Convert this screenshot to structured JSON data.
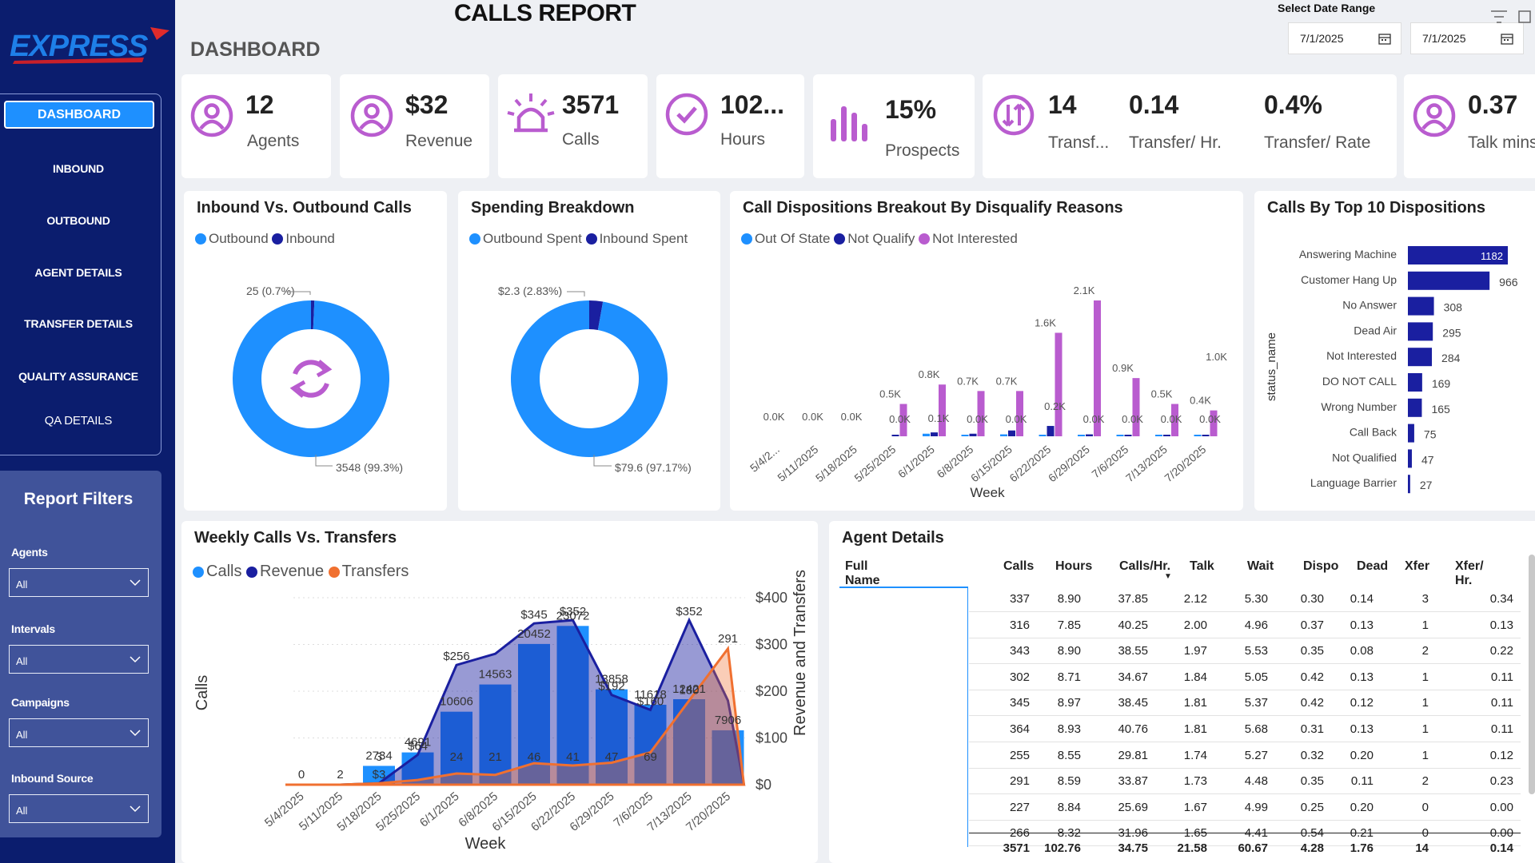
{
  "colors": {
    "sidebar": "#0b1d6e",
    "accent": "#1e90ff",
    "inbound": "#1a1fa0",
    "purple": "#b95ccf",
    "orange": "#f07030"
  },
  "header": {
    "title": "CALLS REPORT",
    "subtitle": "DASHBOARD",
    "date_range_label": "Select Date Range",
    "date_from": "7/1/2025",
    "date_to": "7/1/2025"
  },
  "sidebar": {
    "logo_text": "EXPRESS",
    "nav": [
      "DASHBOARD",
      "INBOUND",
      "OUTBOUND",
      "AGENT DETAILS",
      "TRANSFER DETAILS",
      "QUALITY ASSURANCE",
      "QA DETAILS"
    ],
    "filters_title": "Report Filters",
    "filters": [
      {
        "label": "Agents",
        "value": "All"
      },
      {
        "label": "Intervals",
        "value": "All"
      },
      {
        "label": "Campaigns",
        "value": "All"
      },
      {
        "label": "Inbound Source",
        "value": "All"
      }
    ]
  },
  "kpis": {
    "agents": {
      "value": "12",
      "label": "Agents"
    },
    "revenue": {
      "value": "$32",
      "label": "Revenue"
    },
    "calls": {
      "value": "3571",
      "label": "Calls"
    },
    "hours": {
      "value": "102...",
      "label": "Hours"
    },
    "prospects": {
      "value": "15%",
      "label": "Prospects"
    },
    "transfers": {
      "value": "14",
      "label": "Transf..."
    },
    "transfer_hr": {
      "value": "0.14",
      "label": "Transfer/ Hr."
    },
    "transfer_rate": {
      "value": "0.4%",
      "label": "Transfer/ Rate"
    },
    "talk": {
      "value": "0.37",
      "label": "Talk mins"
    }
  },
  "inbound_outbound": {
    "title": "Inbound Vs. Outbound Calls",
    "legend": [
      "Outbound",
      "Inbound"
    ],
    "label_small": "25 (0.7%)",
    "label_large": "3548 (99.3%)"
  },
  "spending": {
    "title": "Spending Breakdown",
    "legend": [
      "Outbound Spent",
      "Inbound Spent"
    ],
    "label_small": "$2.3 (2.83%)",
    "label_large": "$79.6 (97.17%)"
  },
  "dispositions_breakout": {
    "title": "Call Dispositions Breakout By Disqualify Reasons",
    "legend": [
      "Out Of State",
      "Not Qualify",
      "Not Interested"
    ],
    "xlabel": "Week"
  },
  "top10": {
    "title": "Calls By Top 10 Dispositions",
    "ylabel": "status_name"
  },
  "weekly": {
    "title": "Weekly Calls Vs. Transfers",
    "legend": [
      "Calls",
      "Revenue",
      "Transfers"
    ],
    "ylabel_left": "Calls",
    "ylabel_right": "Revenue and Transfers",
    "xlabel": "Week",
    "right_ticks": [
      "$400",
      "$300",
      "$200",
      "$100",
      "$0"
    ]
  },
  "agent_details": {
    "title": "Agent Details",
    "columns": [
      "Full Name",
      "Calls",
      "Hours",
      "Calls/Hr.",
      "Talk",
      "Wait",
      "Dispo",
      "Dead",
      "Xfer",
      "Xfer/ Hr."
    ],
    "rows": [
      [
        "",
        "337",
        "8.90",
        "37.85",
        "2.12",
        "5.30",
        "0.30",
        "0.14",
        "3",
        "0.34"
      ],
      [
        "",
        "316",
        "7.85",
        "40.25",
        "2.00",
        "4.96",
        "0.37",
        "0.13",
        "1",
        "0.13"
      ],
      [
        "",
        "343",
        "8.90",
        "38.55",
        "1.97",
        "5.53",
        "0.35",
        "0.08",
        "2",
        "0.22"
      ],
      [
        "",
        "302",
        "8.71",
        "34.67",
        "1.84",
        "5.05",
        "0.42",
        "0.13",
        "1",
        "0.11"
      ],
      [
        "",
        "345",
        "8.97",
        "38.45",
        "1.81",
        "5.37",
        "0.42",
        "0.12",
        "1",
        "0.11"
      ],
      [
        "",
        "364",
        "8.93",
        "40.76",
        "1.81",
        "5.68",
        "0.31",
        "0.13",
        "1",
        "0.11"
      ],
      [
        "",
        "255",
        "8.55",
        "29.81",
        "1.74",
        "5.27",
        "0.32",
        "0.20",
        "1",
        "0.12"
      ],
      [
        "",
        "291",
        "8.59",
        "33.87",
        "1.73",
        "4.48",
        "0.35",
        "0.11",
        "2",
        "0.23"
      ],
      [
        "",
        "227",
        "8.84",
        "25.69",
        "1.67",
        "4.99",
        "0.25",
        "0.20",
        "0",
        "0.00"
      ],
      [
        "",
        "266",
        "8.32",
        "31.96",
        "1.65",
        "4.41",
        "0.54",
        "0.21",
        "0",
        "0.00"
      ]
    ],
    "totals": [
      "",
      "3571",
      "102.76",
      "34.75",
      "21.58",
      "60.67",
      "4.28",
      "1.76",
      "14",
      "0.14"
    ]
  },
  "chart_data": [
    {
      "type": "pie",
      "title": "Inbound Vs. Outbound Calls",
      "labels": [
        "Outbound",
        "Inbound"
      ],
      "values": [
        3548,
        25
      ],
      "percent": [
        99.3,
        0.7
      ]
    },
    {
      "type": "pie",
      "title": "Spending Breakdown",
      "labels": [
        "Outbound Spent",
        "Inbound Spent"
      ],
      "values": [
        79.6,
        2.3
      ],
      "percent": [
        97.17,
        2.83
      ]
    },
    {
      "type": "bar",
      "title": "Call Dispositions Breakout By Disqualify Reasons",
      "xlabel": "Week",
      "categories": [
        "5/4/2...",
        "5/11/2025",
        "5/18/2025",
        "5/25/2025",
        "6/1/2025",
        "6/8/2025",
        "6/15/2025",
        "6/22/2025",
        "6/29/2025",
        "7/6/2025",
        "7/13/2025",
        "7/20/2025"
      ],
      "series": [
        {
          "name": "Out Of State",
          "values": [
            0,
            0,
            0,
            0,
            40,
            20,
            30,
            20,
            10,
            10,
            10,
            10
          ]
        },
        {
          "name": "Not Qualify",
          "values": [
            0,
            0,
            0,
            20,
            60,
            40,
            90,
            160,
            30,
            20,
            20,
            10
          ]
        },
        {
          "name": "Not Interested",
          "values": [
            0,
            0,
            0,
            500,
            800,
            700,
            700,
            1600,
            2100,
            900,
            500,
            400
          ]
        }
      ],
      "data_labels": [
        "0.0K",
        "0.0K",
        "0.0K",
        "0.5K",
        "0.8K",
        "0.7K",
        "0.7K",
        "1.6K",
        "2.1K",
        "0.9K",
        "0.5K",
        "0.4K"
      ],
      "extra_labels": [
        "0.0K",
        "0.1K",
        "0.0K",
        "0.0K",
        "0.2K",
        "0.0K",
        "0.0K",
        "0.0K",
        "0.0K",
        "1.0K"
      ]
    },
    {
      "type": "bar",
      "title": "Calls By Top 10 Dispositions",
      "ylabel": "status_name",
      "categories": [
        "Answering Machine",
        "Customer Hang Up",
        "No Answer",
        "Dead Air",
        "Not Interested",
        "DO NOT CALL",
        "Wrong Number",
        "Call Back",
        "Not Qualified",
        "Language Barrier"
      ],
      "values": [
        1182,
        966,
        308,
        295,
        284,
        169,
        165,
        75,
        47,
        27
      ]
    },
    {
      "type": "area",
      "title": "Weekly Calls Vs. Transfers",
      "xlabel": "Week",
      "ylabel": "Calls",
      "y2label": "Revenue and Transfers",
      "categories": [
        "5/4/2025",
        "5/11/2025",
        "5/18/2025",
        "5/25/2025",
        "6/1/2025",
        "6/8/2025",
        "6/15/2025",
        "6/22/2025",
        "6/29/2025",
        "7/6/2025",
        "7/13/2025",
        "7/20/2025"
      ],
      "series": [
        {
          "name": "Calls",
          "values": [
            0,
            2,
            2734,
            4691,
            10606,
            14563,
            20452,
            23072,
            13858,
            11618,
            12421,
            7906
          ]
        },
        {
          "name": "Revenue",
          "values": [
            0,
            0,
            3,
            64,
            256,
            280,
            345,
            352,
            192,
            160,
            352,
            180
          ]
        },
        {
          "name": "Transfers",
          "values": [
            0,
            0,
            3,
            10,
            24,
            21,
            46,
            41,
            47,
            69,
            180,
            291
          ]
        }
      ],
      "y2_ticks": [
        "$400",
        "$300",
        "$200",
        "$100",
        "$0"
      ]
    }
  ]
}
